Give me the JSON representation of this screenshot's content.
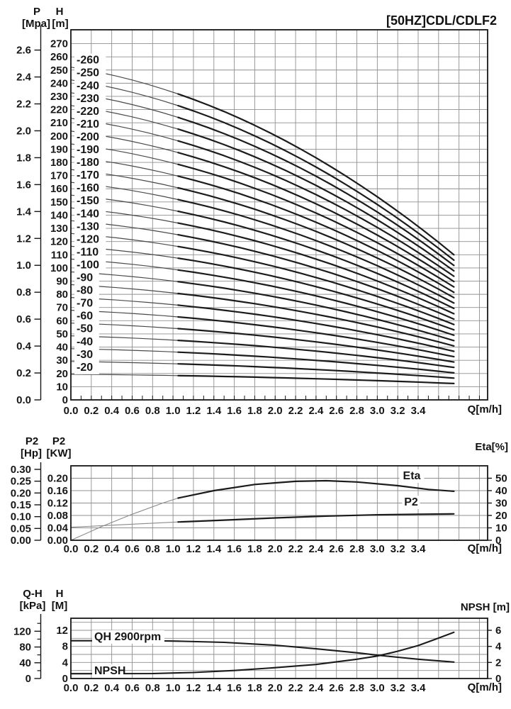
{
  "page": {
    "bg": "#ffffff",
    "ink": "#161616",
    "grid": "#8f8f8f",
    "title": "[50HZ]CDL/CDLF2"
  },
  "chart_data": [
    {
      "name": "main-qh-curves",
      "type": "line",
      "title": "[50HZ]CDL/CDLF2",
      "x": {
        "label": "Q[m/h]",
        "ticks": [
          "0.0",
          "0.2",
          "0.4",
          "0.6",
          "0.8",
          "1.0",
          "1.2",
          "1.4",
          "1.6",
          "1.8",
          "2.0",
          "2.2",
          "2.4",
          "2.6",
          "2.8",
          "3.0",
          "3.2",
          "3.4"
        ],
        "range": [
          0,
          4.08
        ],
        "grid_step": 0.2,
        "minor_step": 0.1
      },
      "left_outer_axis": {
        "name": "P",
        "unit": "[Mpa]",
        "ticks": [
          "0.0",
          "0.2",
          "0.4",
          "0.6",
          "0.8",
          "1.0",
          "1.2",
          "1.4",
          "1.6",
          "1.8",
          "2.0",
          "2.2",
          "2.4",
          "2.6"
        ],
        "m_per_unit": 101.97,
        "minor_step": 0.1
      },
      "left_inner_axis": {
        "name": "H",
        "unit": "[m]",
        "ticks": [
          "0",
          "10",
          "20",
          "30",
          "40",
          "50",
          "60",
          "70",
          "80",
          "90",
          "100",
          "110",
          "120",
          "130",
          "140",
          "150",
          "160",
          "170",
          "180",
          "190",
          "200",
          "210",
          "220",
          "230",
          "240",
          "250",
          "260",
          "270"
        ]
      },
      "y_range_m": [
        0,
        280.5
      ],
      "grid_step_m": 10,
      "curve_model": {
        "q_end": 3.75,
        "thick_from": 1.05,
        "droop_lin": 0.32,
        "droop_quad": 0.68
      },
      "series": [
        {
          "label": "-20",
          "h0": 19.4,
          "h_end": 12.4
        },
        {
          "label": "-30",
          "h0": 29.1,
          "h_end": 16.5
        },
        {
          "label": "-40",
          "h0": 38.8,
          "h_end": 20.5
        },
        {
          "label": "-50",
          "h0": 48.5,
          "h_end": 24.6
        },
        {
          "label": "-60",
          "h0": 58.2,
          "h_end": 28.7
        },
        {
          "label": "-70",
          "h0": 67.9,
          "h_end": 32.7
        },
        {
          "label": "-80",
          "h0": 77.6,
          "h_end": 36.8
        },
        {
          "label": "-90",
          "h0": 87.3,
          "h_end": 40.9
        },
        {
          "label": "-100",
          "h0": 97.0,
          "h_end": 44.9
        },
        {
          "label": "-110",
          "h0": 106.7,
          "h_end": 49.0
        },
        {
          "label": "-120",
          "h0": 116.4,
          "h_end": 53.1
        },
        {
          "label": "-130",
          "h0": 126.1,
          "h_end": 57.1
        },
        {
          "label": "-140",
          "h0": 135.8,
          "h_end": 61.2
        },
        {
          "label": "-150",
          "h0": 145.5,
          "h_end": 65.3
        },
        {
          "label": "-160",
          "h0": 155.2,
          "h_end": 69.3
        },
        {
          "label": "-170",
          "h0": 164.9,
          "h_end": 73.4
        },
        {
          "label": "-180",
          "h0": 174.6,
          "h_end": 77.5
        },
        {
          "label": "-190",
          "h0": 184.3,
          "h_end": 81.5
        },
        {
          "label": "-200",
          "h0": 194.0,
          "h_end": 85.6
        },
        {
          "label": "-210",
          "h0": 203.7,
          "h_end": 89.7
        },
        {
          "label": "-220",
          "h0": 213.4,
          "h_end": 93.7
        },
        {
          "label": "-230",
          "h0": 223.1,
          "h_end": 97.8
        },
        {
          "label": "-240",
          "h0": 232.8,
          "h_end": 101.9
        },
        {
          "label": "-250",
          "h0": 242.5,
          "h_end": 105.9
        },
        {
          "label": "-260",
          "h0": 252.2,
          "h_end": 110.0
        }
      ]
    },
    {
      "name": "power-efficiency",
      "type": "line",
      "x": {
        "label": "Q[m/h]",
        "ticks": [
          "0.0",
          "0.2",
          "0.4",
          "0.6",
          "0.8",
          "1.0",
          "1.2",
          "1.4",
          "1.6",
          "1.8",
          "2.0",
          "2.2",
          "2.4",
          "2.6",
          "2.8",
          "3.0",
          "3.2",
          "3.4"
        ],
        "range": [
          0,
          4.08
        ],
        "grid_step": 0.2
      },
      "left_outer_axis": {
        "name": "P2",
        "unit": "[Hp]",
        "ticks": [
          "0.00",
          "0.05",
          "0.10",
          "0.15",
          "0.20",
          "0.25",
          "0.30"
        ],
        "range": [
          0,
          0.315
        ]
      },
      "left_inner_axis": {
        "name": "P2",
        "unit": "[KW]",
        "ticks": [
          "0.00",
          "0.04",
          "0.08",
          "0.12",
          "0.16",
          "0.20"
        ],
        "range": [
          0,
          0.24
        ]
      },
      "right_axis": {
        "title": "Eta[%]",
        "ticks": [
          "0",
          "10",
          "20",
          "30",
          "40",
          "50"
        ],
        "range": [
          0,
          60
        ]
      },
      "thick_from": 1.05,
      "series": [
        {
          "name": "Eta",
          "axis": "eta",
          "points": [
            [
              0,
              0
            ],
            [
              0.3,
              11
            ],
            [
              0.6,
              21
            ],
            [
              0.9,
              30
            ],
            [
              1.05,
              34
            ],
            [
              1.4,
              40
            ],
            [
              1.8,
              45
            ],
            [
              2.2,
              47.5
            ],
            [
              2.5,
              48
            ],
            [
              2.8,
              47
            ],
            [
              3.2,
              44
            ],
            [
              3.5,
              41
            ],
            [
              3.75,
              39.5
            ]
          ]
        },
        {
          "name": "P2",
          "axis": "kw",
          "points": [
            [
              0,
              0.042
            ],
            [
              0.5,
              0.05
            ],
            [
              1.05,
              0.059
            ],
            [
              1.5,
              0.065
            ],
            [
              2.0,
              0.072
            ],
            [
              2.5,
              0.078
            ],
            [
              3.0,
              0.082
            ],
            [
              3.4,
              0.084
            ],
            [
              3.75,
              0.085
            ]
          ]
        }
      ]
    },
    {
      "name": "qh-npsh",
      "type": "line",
      "x": {
        "label": "Q[m/h]",
        "ticks": [
          "0.0",
          "0.2",
          "0.4",
          "0.6",
          "0.8",
          "1.0",
          "1.2",
          "1.4",
          "1.6",
          "1.8",
          "2.0",
          "2.2",
          "2.4",
          "2.6",
          "2.8",
          "3.0",
          "3.2",
          "3.4"
        ],
        "range": [
          0,
          4.08
        ],
        "grid_step": 0.2
      },
      "left_outer_axis": {
        "name": "Q-H",
        "unit": "[kPa]",
        "ticks": [
          "0",
          "40",
          "80",
          "120"
        ],
        "minor_step": 20,
        "range": [
          0,
          153
        ]
      },
      "left_inner_axis": {
        "name": "H",
        "unit": "[M]",
        "ticks": [
          "0",
          "4",
          "8",
          "12"
        ],
        "range": [
          0,
          15
        ]
      },
      "right_axis": {
        "title": "NPSH [m]",
        "ticks": [
          "0",
          "2",
          "4",
          "6"
        ],
        "range": [
          0,
          7.5
        ]
      },
      "grid_step_m": 2,
      "series": [
        {
          "name": "QH 2900rpm",
          "axis": "m",
          "points": [
            [
              0,
              9.4
            ],
            [
              0.8,
              9.4
            ],
            [
              1.05,
              9.3
            ],
            [
              1.5,
              9.0
            ],
            [
              2.0,
              8.3
            ],
            [
              2.4,
              7.4
            ],
            [
              2.8,
              6.4
            ],
            [
              3.0,
              5.8
            ],
            [
              3.2,
              5.3
            ],
            [
              3.4,
              4.8
            ],
            [
              3.75,
              4.1
            ]
          ]
        },
        {
          "name": "NPSH",
          "axis": "npsh",
          "points": [
            [
              0,
              0.6
            ],
            [
              0.8,
              0.62
            ],
            [
              1.2,
              0.75
            ],
            [
              1.6,
              1.0
            ],
            [
              2.0,
              1.35
            ],
            [
              2.4,
              1.75
            ],
            [
              2.8,
              2.4
            ],
            [
              3.0,
              2.8
            ],
            [
              3.2,
              3.4
            ],
            [
              3.4,
              4.1
            ],
            [
              3.55,
              4.8
            ],
            [
              3.75,
              5.75
            ]
          ]
        }
      ]
    }
  ]
}
